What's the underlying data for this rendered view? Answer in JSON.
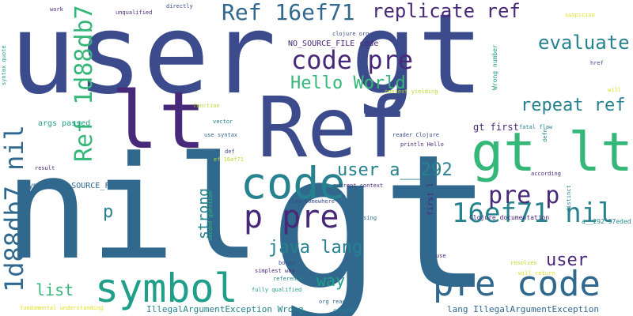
{
  "palette": {
    "dark_purple": "#482878",
    "indigo": "#3b4b8c",
    "blue": "#31688e",
    "teal": "#26828e",
    "teal_green": "#1f9e89",
    "green": "#35b779",
    "lime": "#6ece58",
    "yellow_green": "#b5de2b",
    "yellow": "#e0e022"
  },
  "words": [
    "user",
    "gt",
    "nil",
    "gt",
    "Ref",
    "lt",
    "gt lt",
    "code",
    "pre code",
    "symbol",
    "p pre",
    "Ref 16ef71",
    "code pre",
    "1d88db7 nil",
    "Ref 1d88db7",
    "16ef71 nil",
    "replicate ref",
    "evaluate",
    "Hello World",
    "repeat ref",
    "pre p",
    "user a__292",
    "java lang",
    "user",
    "list",
    "way",
    "p",
    "strong",
    "NO_SOURCE_FILE code",
    "Symbol NO_SOURCE_FILE",
    "IllegalArgumentException Wrong",
    "lang IllegalArgumentException",
    "args passed",
    "gt first",
    "fatal flaw",
    "println Hello",
    "reader Clojure",
    "Clojure documentation",
    "current context",
    "flaw somewhere",
    "Second question",
    "distinct",
    "a__292 97eded",
    "first l",
    "Using",
    "bound",
    "simplest way",
    "reference",
    "fully qualified",
    "fundamental understanding",
    "org reader",
    "create",
    "resolves",
    "will return",
    "use",
    "work",
    "unqualified",
    "directly",
    "clojure org",
    "suspicion",
    "syntax quote",
    "function",
    "vector",
    "use syntax",
    "def",
    "ef 16ef71",
    "result",
    "according",
    "defn",
    "context yielding",
    "Wrong number",
    "href",
    "will"
  ]
}
